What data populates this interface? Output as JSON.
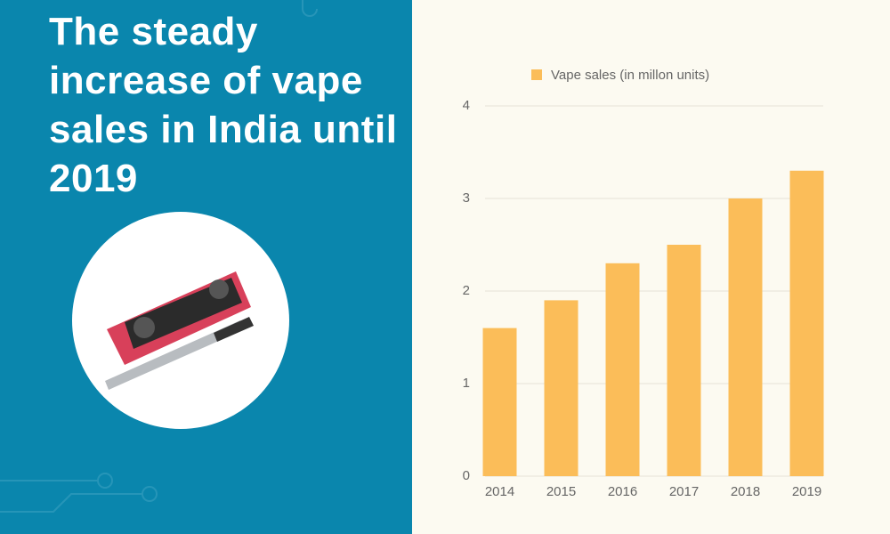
{
  "chart_data": {
    "type": "bar",
    "title": "The steady increase of vape sales in India until 2019",
    "categories": [
      "2014",
      "2015",
      "2016",
      "2017",
      "2018",
      "2019"
    ],
    "series": [
      {
        "name": "Vape sales (in millon units)",
        "color": "#fbbd59",
        "values": [
          1.6,
          1.9,
          2.3,
          2.5,
          3.0,
          3.3
        ]
      }
    ],
    "ylim": [
      0,
      4
    ],
    "yticks": [
      0,
      1,
      2,
      3,
      4
    ],
    "grid": true
  }
}
